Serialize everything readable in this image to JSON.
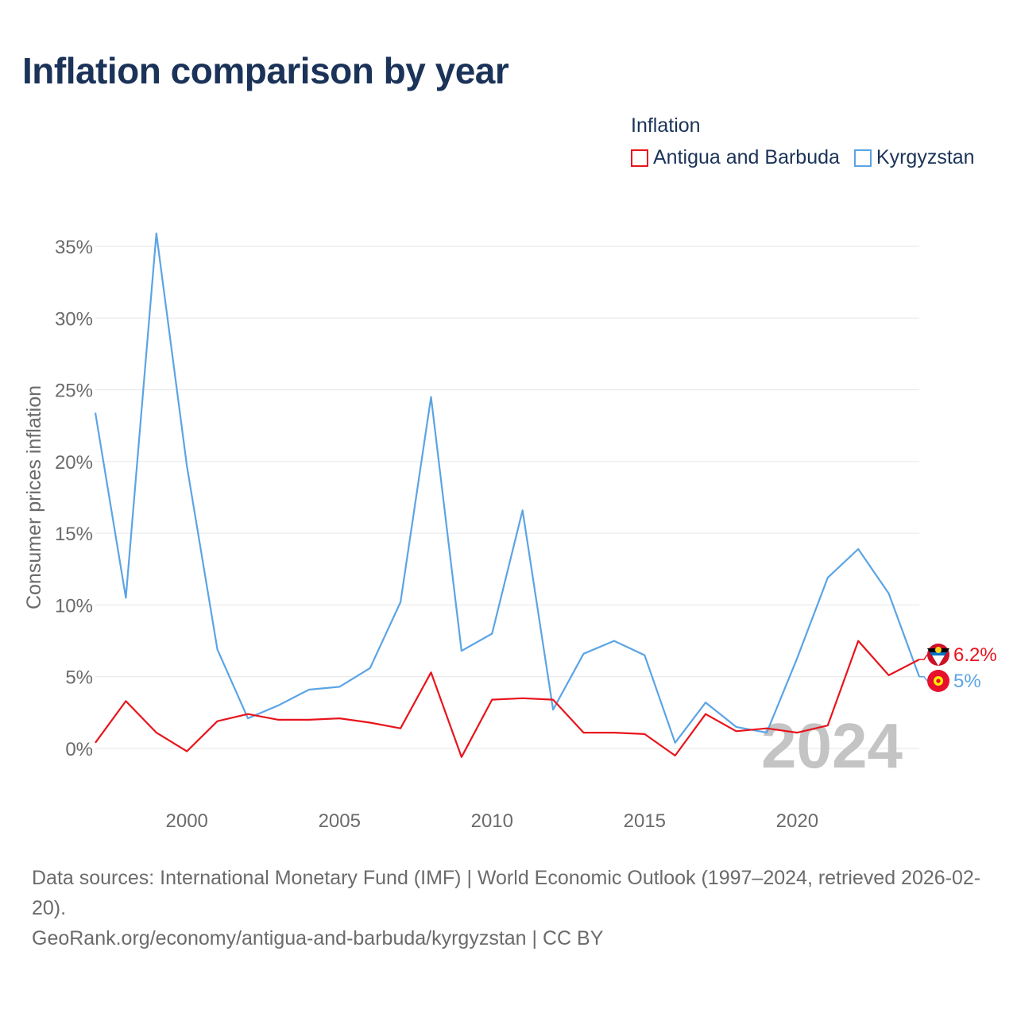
{
  "title": "Inflation comparison by year",
  "legend": {
    "title": "Inflation",
    "items": [
      {
        "label": "Antigua and Barbuda",
        "color": "#e8141c"
      },
      {
        "label": "Kyrgyzstan",
        "color": "#5ba4e5"
      }
    ]
  },
  "footer": {
    "sources": "Data sources: International Monetary Fund (IMF) | World Economic Outlook (1997–2024, retrieved 2026-02-20).",
    "credit": "GeoRank.org/economy/antigua-and-barbuda/kyrgyzstan | CC BY"
  },
  "chart_data": {
    "type": "line",
    "title": "Inflation comparison by year",
    "xlabel": "",
    "ylabel": "Consumer prices inflation",
    "xlim": [
      1997,
      2024
    ],
    "ylim": [
      -3,
      37
    ],
    "x_ticks": [
      2000,
      2005,
      2010,
      2015,
      2020
    ],
    "y_ticks": [
      0,
      5,
      10,
      15,
      20,
      25,
      30,
      35
    ],
    "y_tick_suffix": "%",
    "grid": true,
    "watermark_year": "2024",
    "x": [
      1997,
      1998,
      1999,
      2000,
      2001,
      2002,
      2003,
      2004,
      2005,
      2006,
      2007,
      2008,
      2009,
      2010,
      2011,
      2012,
      2013,
      2014,
      2015,
      2016,
      2017,
      2018,
      2019,
      2020,
      2021,
      2022,
      2023,
      2024
    ],
    "series": [
      {
        "name": "Antigua and Barbuda",
        "color": "#e8141c",
        "values": [
          0.4,
          3.3,
          1.1,
          -0.2,
          1.9,
          2.4,
          2.0,
          2.0,
          2.1,
          1.8,
          1.4,
          5.3,
          -0.6,
          3.4,
          3.5,
          3.4,
          1.1,
          1.1,
          1.0,
          -0.5,
          2.4,
          1.2,
          1.4,
          1.1,
          1.6,
          7.5,
          5.1,
          6.2
        ],
        "end_label": "6.2%",
        "flag": "antigua-and-barbuda-flag-icon"
      },
      {
        "name": "Kyrgyzstan",
        "color": "#5ba4e5",
        "values": [
          23.4,
          10.5,
          35.9,
          19.7,
          6.9,
          2.1,
          3.0,
          4.1,
          4.3,
          5.6,
          10.2,
          24.5,
          6.8,
          8.0,
          16.6,
          2.7,
          6.6,
          7.5,
          6.5,
          0.4,
          3.2,
          1.5,
          1.1,
          6.3,
          11.9,
          13.9,
          10.8,
          5.0
        ],
        "end_label": "5%",
        "flag": "kyrgyzstan-flag-icon"
      }
    ]
  }
}
